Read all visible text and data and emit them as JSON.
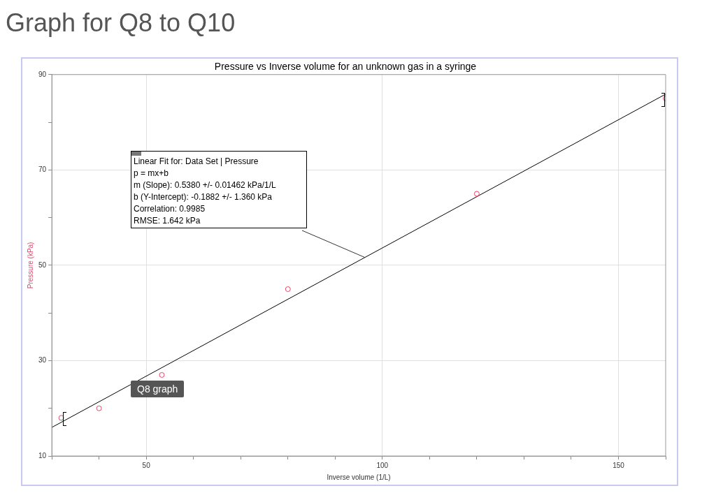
{
  "chart_data": {
    "type": "scatter",
    "title": "Graph for Q8 to Q10",
    "subtitle": "Pressure vs Inverse volume for an unknown gas in a syringe",
    "xlabel": "Inverse volume (1/L)",
    "ylabel": "Pressure (kPa)",
    "series": [
      {
        "color": "#e8456a",
        "x": [
          32,
          40,
          53.3,
          80,
          120,
          160
        ],
        "values": [
          18,
          20,
          27,
          45,
          65,
          85
        ],
        "marker": "circle"
      },
      {
        "type": "line",
        "color": "#000000",
        "x": [
          30,
          160
        ],
        "values": [
          16,
          85.9
        ],
        "marker": "none",
        "line_style": "solid"
      }
    ],
    "xlim": [
      30,
      160
    ],
    "ylim": [
      10,
      90
    ],
    "xticks": [
      {
        "value": 30,
        "label": null
      },
      {
        "value": 40,
        "label": null
      },
      50,
      {
        "value": 60,
        "label": null
      },
      {
        "value": 70,
        "label": null
      },
      {
        "value": 80,
        "label": null
      },
      {
        "value": 90,
        "label": null
      },
      100,
      {
        "value": 110,
        "label": null
      },
      {
        "value": 120,
        "label": null
      },
      {
        "value": 130,
        "label": null
      },
      {
        "value": 140,
        "label": null
      },
      150,
      {
        "value": 160,
        "label": null
      }
    ],
    "yticks": [
      10,
      {
        "value": 20,
        "label": null
      },
      30,
      {
        "value": 40,
        "label": null
      },
      50,
      {
        "value": 60,
        "label": null
      },
      70,
      {
        "value": 80,
        "label": null
      },
      90
    ],
    "grid": true,
    "annotations": [
      "Linear Fit for: Data Set | Pressure",
      "p = mx+b",
      "m (Slope): 0.5380 +/- 0.01462 kPa/1/L",
      "b (Y-Intercept): -0.1882 +/- 1.360 kPa",
      "Correlation: 0.9985",
      "RMSE: 1.642 kPa",
      "Q8 graph"
    ]
  }
}
